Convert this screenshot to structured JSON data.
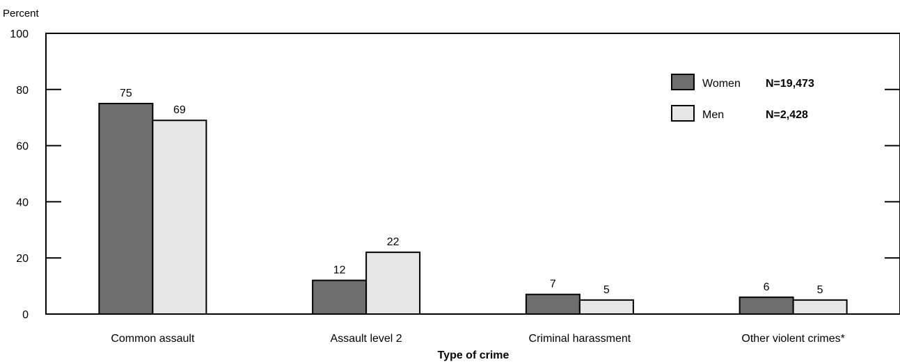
{
  "chart_data": {
    "type": "bar",
    "ylabel": "Percent",
    "xlabel": "Type of crime",
    "ylim": [
      0,
      100
    ],
    "yticks": [
      0,
      20,
      40,
      60,
      80,
      100
    ],
    "categories": [
      "Common assault",
      "Assault level 2",
      "Criminal harassment",
      "Other violent crimes*"
    ],
    "series": [
      {
        "name": "Women",
        "n_label": "N=19,473",
        "color": "#6e6e6e",
        "values": [
          75,
          12,
          7,
          6
        ]
      },
      {
        "name": "Men",
        "n_label": "N=2,428",
        "color": "#e6e6e6",
        "values": [
          69,
          22,
          5,
          5
        ]
      }
    ],
    "legend_position": "top-right",
    "grid": false
  }
}
